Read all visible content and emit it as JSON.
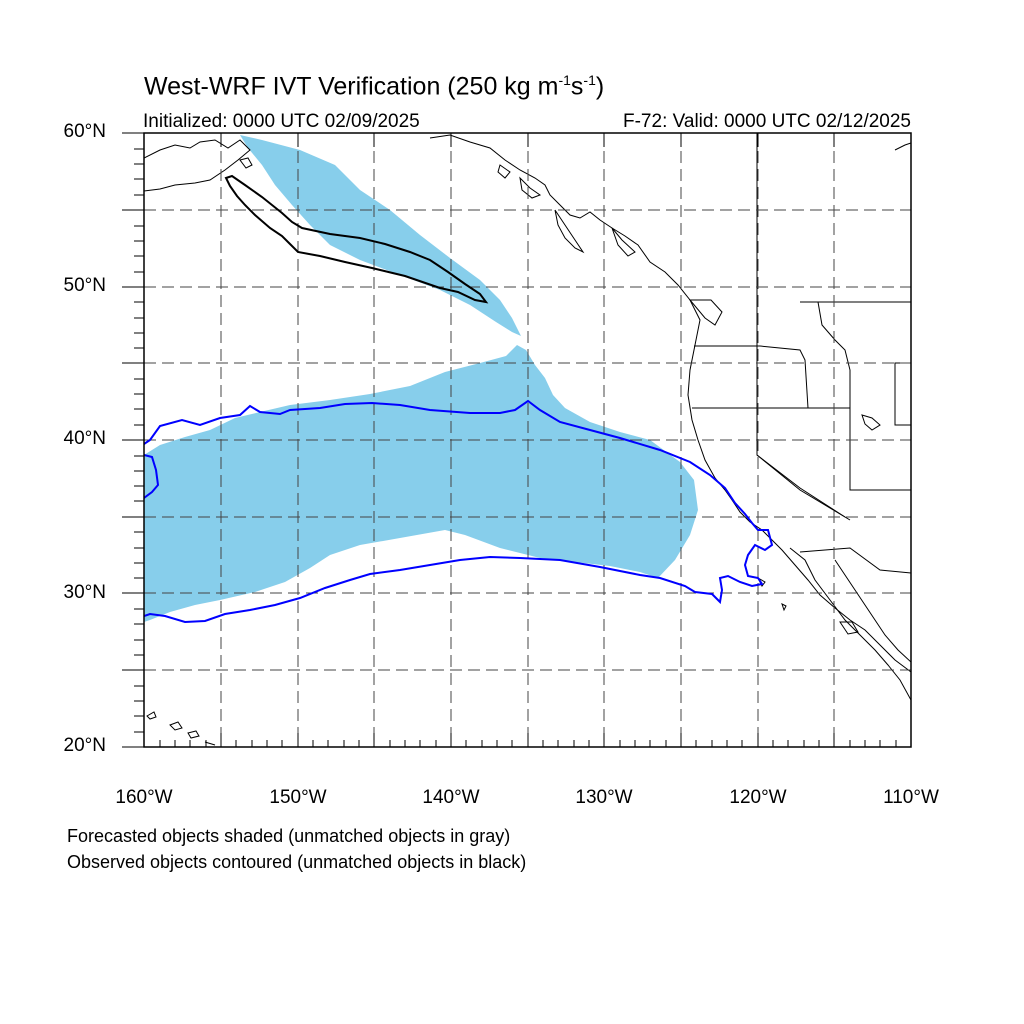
{
  "title": {
    "main": "West-WRF IVT Verification (250 kg m",
    "exp1": "-1",
    "mid": "s",
    "exp2": "-1",
    "close": ")"
  },
  "initialized": "Initialized: 0000 UTC 02/09/2025",
  "valid": "F-72: Valid: 0000 UTC 02/12/2025",
  "lat_labels": [
    "60°N",
    "50°N",
    "40°N",
    "30°N",
    "20°N"
  ],
  "lon_labels": [
    "160°W",
    "150°W",
    "140°W",
    "130°W",
    "120°W",
    "110°W"
  ],
  "notes": [
    "Forecasted objects shaded (unmatched objects in gray)",
    "Observed objects contoured (unmatched objects in black)"
  ],
  "map_extent": {
    "lon_min": -160,
    "lon_max": -110,
    "lat_min": 20,
    "lat_max": 60
  },
  "colors": {
    "forecast_fill": "#87ceeb",
    "observed_matched": "#0000ff",
    "observed_unmatched": "#000000",
    "coastline": "#000000",
    "grid": "#444444"
  }
}
